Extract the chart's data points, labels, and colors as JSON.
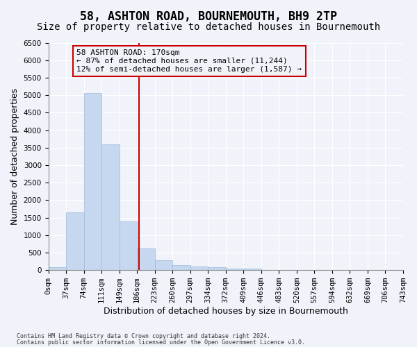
{
  "title": "58, ASHTON ROAD, BOURNEMOUTH, BH9 2TP",
  "subtitle": "Size of property relative to detached houses in Bournemouth",
  "xlabel": "Distribution of detached houses by size in Bournemouth",
  "ylabel": "Number of detached properties",
  "bar_color": "#c5d8f0",
  "bar_edgecolor": "#a0b8d8",
  "bar_values": [
    75,
    1650,
    5060,
    3600,
    1400,
    620,
    290,
    150,
    100,
    80,
    50,
    50,
    0,
    0,
    0,
    0,
    0,
    0,
    0,
    0
  ],
  "bar_labels": [
    "0sqm",
    "37sqm",
    "74sqm",
    "111sqm",
    "149sqm",
    "186sqm",
    "223sqm",
    "260sqm",
    "297sqm",
    "334sqm",
    "372sqm",
    "409sqm",
    "446sqm",
    "483sqm",
    "520sqm",
    "557sqm",
    "594sqm",
    "632sqm",
    "669sqm",
    "706sqm",
    "743sqm"
  ],
  "vline_x": 4.62,
  "vline_color": "#cc0000",
  "annotation_title": "58 ASHTON ROAD: 170sqm",
  "annotation_line1": "← 87% of detached houses are smaller (11,244)",
  "annotation_line2": "12% of semi-detached houses are larger (1,587) →",
  "annotation_box_color": "#cc0000",
  "ylim": [
    0,
    6500
  ],
  "yticks": [
    0,
    500,
    1000,
    1500,
    2000,
    2500,
    3000,
    3500,
    4000,
    4500,
    5000,
    5500,
    6000,
    6500
  ],
  "footnote1": "Contains HM Land Registry data © Crown copyright and database right 2024.",
  "footnote2": "Contains public sector information licensed under the Open Government Licence v3.0.",
  "background_color": "#f0f4fa",
  "grid_color": "#ffffff",
  "title_fontsize": 12,
  "subtitle_fontsize": 10,
  "label_fontsize": 9,
  "tick_fontsize": 7.5
}
